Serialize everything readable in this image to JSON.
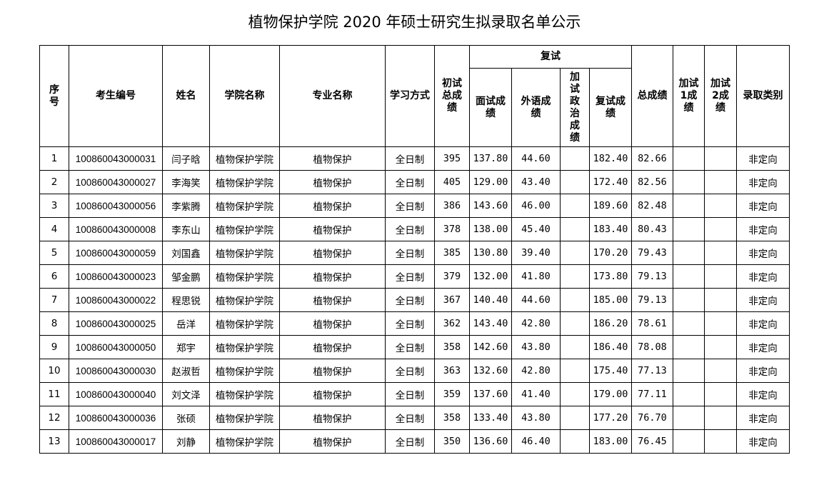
{
  "title": "植物保护学院 2020 年硕士研究生拟录取名单公示",
  "headers": {
    "seq": "序号",
    "exam_id": "考生编号",
    "name": "姓名",
    "college": "学院名称",
    "major": "专业名称",
    "study_mode": "学习方式",
    "prelim_total": "初试总成绩",
    "retest_group": "复试",
    "interview": "面试成绩",
    "foreign": "外语成绩",
    "politics": "加试政治成绩",
    "retest_score": "复试成绩",
    "total": "总成绩",
    "extra1": "加试1成绩",
    "extra2": "加试2成绩",
    "category": "录取类别"
  },
  "rows": [
    {
      "seq": "1",
      "exam_id": "100860043000031",
      "name": "闫子晗",
      "college": "植物保护学院",
      "major": "植物保护",
      "mode": "全日制",
      "prelim": "395",
      "interview": "137.80",
      "foreign": "44.60",
      "politics": "",
      "retest": "182.40",
      "total": "82.66",
      "extra1": "",
      "extra2": "",
      "category": "非定向"
    },
    {
      "seq": "2",
      "exam_id": "100860043000027",
      "name": "李海笑",
      "college": "植物保护学院",
      "major": "植物保护",
      "mode": "全日制",
      "prelim": "405",
      "interview": "129.00",
      "foreign": "43.40",
      "politics": "",
      "retest": "172.40",
      "total": "82.56",
      "extra1": "",
      "extra2": "",
      "category": "非定向"
    },
    {
      "seq": "3",
      "exam_id": "100860043000056",
      "name": "李紫腾",
      "college": "植物保护学院",
      "major": "植物保护",
      "mode": "全日制",
      "prelim": "386",
      "interview": "143.60",
      "foreign": "46.00",
      "politics": "",
      "retest": "189.60",
      "total": "82.48",
      "extra1": "",
      "extra2": "",
      "category": "非定向"
    },
    {
      "seq": "4",
      "exam_id": "100860043000008",
      "name": "李东山",
      "college": "植物保护学院",
      "major": "植物保护",
      "mode": "全日制",
      "prelim": "378",
      "interview": "138.00",
      "foreign": "45.40",
      "politics": "",
      "retest": "183.40",
      "total": "80.43",
      "extra1": "",
      "extra2": "",
      "category": "非定向"
    },
    {
      "seq": "5",
      "exam_id": "100860043000059",
      "name": "刘国鑫",
      "college": "植物保护学院",
      "major": "植物保护",
      "mode": "全日制",
      "prelim": "385",
      "interview": "130.80",
      "foreign": "39.40",
      "politics": "",
      "retest": "170.20",
      "total": "79.43",
      "extra1": "",
      "extra2": "",
      "category": "非定向"
    },
    {
      "seq": "6",
      "exam_id": "100860043000023",
      "name": "邹金鹏",
      "college": "植物保护学院",
      "major": "植物保护",
      "mode": "全日制",
      "prelim": "379",
      "interview": "132.00",
      "foreign": "41.80",
      "politics": "",
      "retest": "173.80",
      "total": "79.13",
      "extra1": "",
      "extra2": "",
      "category": "非定向"
    },
    {
      "seq": "7",
      "exam_id": "100860043000022",
      "name": "程思锐",
      "college": "植物保护学院",
      "major": "植物保护",
      "mode": "全日制",
      "prelim": "367",
      "interview": "140.40",
      "foreign": "44.60",
      "politics": "",
      "retest": "185.00",
      "total": "79.13",
      "extra1": "",
      "extra2": "",
      "category": "非定向"
    },
    {
      "seq": "8",
      "exam_id": "100860043000025",
      "name": "岳洋",
      "college": "植物保护学院",
      "major": "植物保护",
      "mode": "全日制",
      "prelim": "362",
      "interview": "143.40",
      "foreign": "42.80",
      "politics": "",
      "retest": "186.20",
      "total": "78.61",
      "extra1": "",
      "extra2": "",
      "category": "非定向"
    },
    {
      "seq": "9",
      "exam_id": "100860043000050",
      "name": "郑宇",
      "college": "植物保护学院",
      "major": "植物保护",
      "mode": "全日制",
      "prelim": "358",
      "interview": "142.60",
      "foreign": "43.80",
      "politics": "",
      "retest": "186.40",
      "total": "78.08",
      "extra1": "",
      "extra2": "",
      "category": "非定向"
    },
    {
      "seq": "10",
      "exam_id": "100860043000030",
      "name": "赵淑哲",
      "college": "植物保护学院",
      "major": "植物保护",
      "mode": "全日制",
      "prelim": "363",
      "interview": "132.60",
      "foreign": "42.80",
      "politics": "",
      "retest": "175.40",
      "total": "77.13",
      "extra1": "",
      "extra2": "",
      "category": "非定向"
    },
    {
      "seq": "11",
      "exam_id": "100860043000040",
      "name": "刘文泽",
      "college": "植物保护学院",
      "major": "植物保护",
      "mode": "全日制",
      "prelim": "359",
      "interview": "137.60",
      "foreign": "41.40",
      "politics": "",
      "retest": "179.00",
      "total": "77.11",
      "extra1": "",
      "extra2": "",
      "category": "非定向"
    },
    {
      "seq": "12",
      "exam_id": "100860043000036",
      "name": "张硕",
      "college": "植物保护学院",
      "major": "植物保护",
      "mode": "全日制",
      "prelim": "358",
      "interview": "133.40",
      "foreign": "43.80",
      "politics": "",
      "retest": "177.20",
      "total": "76.70",
      "extra1": "",
      "extra2": "",
      "category": "非定向"
    },
    {
      "seq": "13",
      "exam_id": "100860043000017",
      "name": "刘静",
      "college": "植物保护学院",
      "major": "植物保护",
      "mode": "全日制",
      "prelim": "350",
      "interview": "136.60",
      "foreign": "46.40",
      "politics": "",
      "retest": "183.00",
      "total": "76.45",
      "extra1": "",
      "extra2": "",
      "category": "非定向"
    }
  ]
}
